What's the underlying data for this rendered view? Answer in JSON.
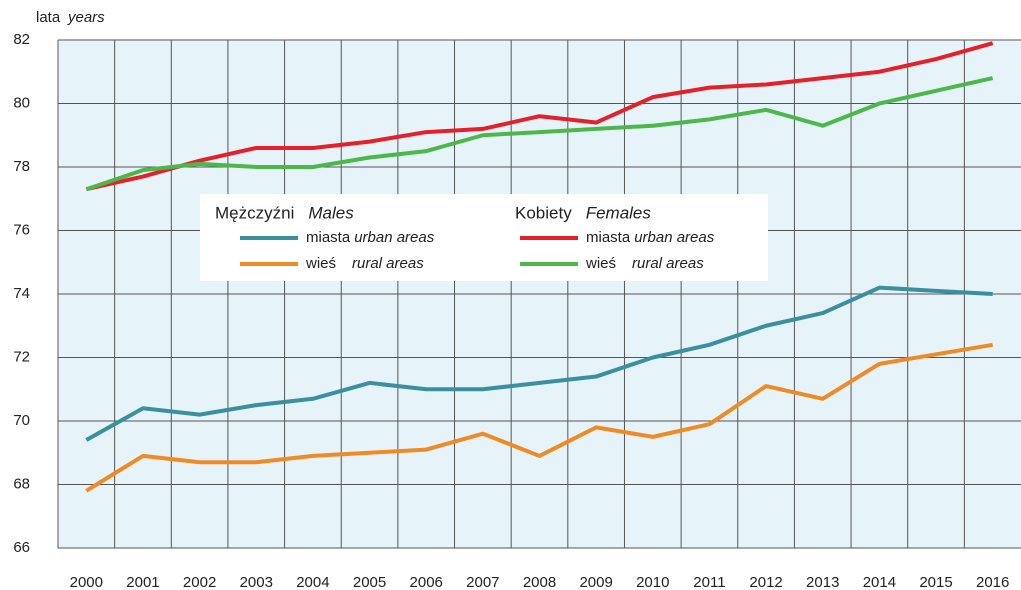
{
  "chart_data": {
    "type": "line",
    "y_label": "lata",
    "y_label_en": "years",
    "categories": [
      "2000",
      "2001",
      "2002",
      "2003",
      "2004",
      "2005",
      "2006",
      "2007",
      "2008",
      "2009",
      "2010",
      "2011",
      "2012",
      "2013",
      "2014",
      "2015",
      "2016"
    ],
    "ylim": [
      66,
      82
    ],
    "yticks": [
      66,
      68,
      70,
      72,
      74,
      76,
      78,
      80,
      82
    ],
    "grid": true,
    "legend_groups": [
      {
        "title": "Mężczyźni",
        "title_en": "Males"
      },
      {
        "title": "Kobiety",
        "title_en": "Females"
      }
    ],
    "series": [
      {
        "name": "miasta",
        "name_en": "urban areas",
        "group": 0,
        "color": "#3a8fa0",
        "values": [
          69.4,
          70.4,
          70.2,
          70.5,
          70.7,
          71.2,
          71.0,
          71.0,
          71.2,
          71.4,
          72.0,
          72.4,
          73.0,
          73.4,
          74.2,
          74.1,
          74.0
        ]
      },
      {
        "name": "wieś",
        "name_en": "rural areas",
        "group": 0,
        "color": "#f08a24",
        "values": [
          67.8,
          68.9,
          68.7,
          68.7,
          68.9,
          69.0,
          69.1,
          69.6,
          68.9,
          69.8,
          69.5,
          69.9,
          71.1,
          70.7,
          71.8,
          72.1,
          72.4
        ]
      },
      {
        "name": "miasta",
        "name_en": "urban areas",
        "group": 1,
        "color": "#e5202a",
        "values": [
          77.3,
          77.7,
          78.2,
          78.6,
          78.6,
          78.8,
          79.1,
          79.2,
          79.6,
          79.4,
          80.2,
          80.5,
          80.6,
          80.8,
          81.0,
          81.4,
          81.9
        ]
      },
      {
        "name": "wieś",
        "name_en": "rural areas",
        "group": 1,
        "color": "#4cb84a",
        "values": [
          77.3,
          77.9,
          78.1,
          78.0,
          78.0,
          78.3,
          78.5,
          79.0,
          79.1,
          79.2,
          79.3,
          79.5,
          79.8,
          79.3,
          80.0,
          80.4,
          80.8
        ]
      }
    ]
  }
}
